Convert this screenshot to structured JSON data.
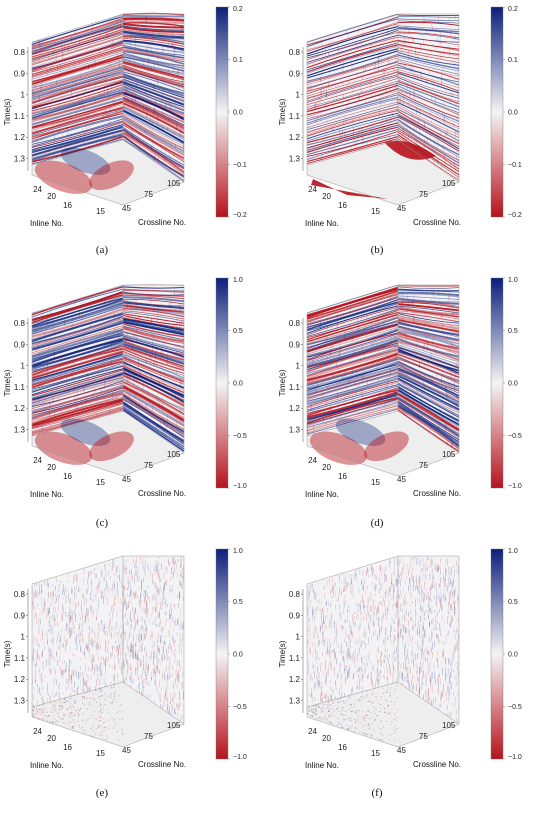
{
  "panels": [
    {
      "id": "a",
      "caption": "(a)",
      "time_ticks": [
        "0.8",
        "0.9",
        "1",
        "1.1",
        "1.2",
        "1.3"
      ],
      "inline_ticks": [
        "24",
        "20",
        "16"
      ],
      "crossline_ticks": [
        "15",
        "45",
        "75",
        "105"
      ],
      "time_label": "Time(s)",
      "inline_label": "Inline No.",
      "crossline_label": "Crossline No.",
      "colorbar_ticks": [
        "0.2",
        "0.1",
        "0.0",
        "−0.1",
        "−0.2"
      ],
      "style": "seismic"
    },
    {
      "id": "b",
      "caption": "(b)",
      "time_ticks": [
        "0.8",
        "0.9",
        "1",
        "1.1",
        "1.2",
        "1.3"
      ],
      "inline_ticks": [
        "24",
        "20",
        "16"
      ],
      "crossline_ticks": [
        "15",
        "45",
        "75",
        "105"
      ],
      "time_label": "Time(s)",
      "inline_label": "Inline No.",
      "crossline_label": "Crossline No.",
      "colorbar_ticks": [
        "0.2",
        "0.1",
        "0.0",
        "−0.1",
        "−0.2"
      ],
      "style": "sparse"
    },
    {
      "id": "c",
      "caption": "(c)",
      "time_ticks": [
        "0.8",
        "0.9",
        "1",
        "1.1",
        "1.2",
        "1.3"
      ],
      "inline_ticks": [
        "24",
        "20",
        "16"
      ],
      "crossline_ticks": [
        "15",
        "45",
        "75",
        "105"
      ],
      "time_label": "Time(s)",
      "inline_label": "Inline No.",
      "crossline_label": "Crossline No.",
      "colorbar_ticks": [
        "1.0",
        "0.5",
        "0.0",
        "−0.5",
        "−1.0"
      ],
      "style": "seismic"
    },
    {
      "id": "d",
      "caption": "(d)",
      "time_ticks": [
        "0.8",
        "0.9",
        "1",
        "1.1",
        "1.2",
        "1.3"
      ],
      "inline_ticks": [
        "24",
        "20",
        "16"
      ],
      "crossline_ticks": [
        "15",
        "45",
        "75",
        "105"
      ],
      "time_label": "Time(s)",
      "inline_label": "Inline No.",
      "crossline_label": "Crossline No.",
      "colorbar_ticks": [
        "1.0",
        "0.5",
        "0.0",
        "−0.5",
        "−1.0"
      ],
      "style": "seismic"
    },
    {
      "id": "e",
      "caption": "(e)",
      "time_ticks": [
        "0.8",
        "0.9",
        "1",
        "1.1",
        "1.2",
        "1.3"
      ],
      "inline_ticks": [
        "24",
        "20",
        "16"
      ],
      "crossline_ticks": [
        "15",
        "45",
        "75",
        "105"
      ],
      "time_label": "Time(s)",
      "inline_label": "Inline No.",
      "crossline_label": "Crossline No.",
      "colorbar_ticks": [
        "1.0",
        "0.5",
        "0.0",
        "−0.5",
        "−1.0"
      ],
      "style": "noise"
    },
    {
      "id": "f",
      "caption": "(f)",
      "time_ticks": [
        "0.8",
        "0.9",
        "1",
        "1.1",
        "1.2",
        "1.3"
      ],
      "inline_ticks": [
        "24",
        "20",
        "16"
      ],
      "crossline_ticks": [
        "15",
        "45",
        "75",
        "105"
      ],
      "time_label": "Time(s)",
      "inline_label": "Inline No.",
      "crossline_label": "Crossline No.",
      "colorbar_ticks": [
        "1.0",
        "0.5",
        "0.0",
        "−0.5",
        "−1.0"
      ],
      "style": "noise"
    }
  ],
  "colors": {
    "positive": "#0a1f7a",
    "negative": "#b5121b",
    "neutral": "#f2f2f2"
  }
}
